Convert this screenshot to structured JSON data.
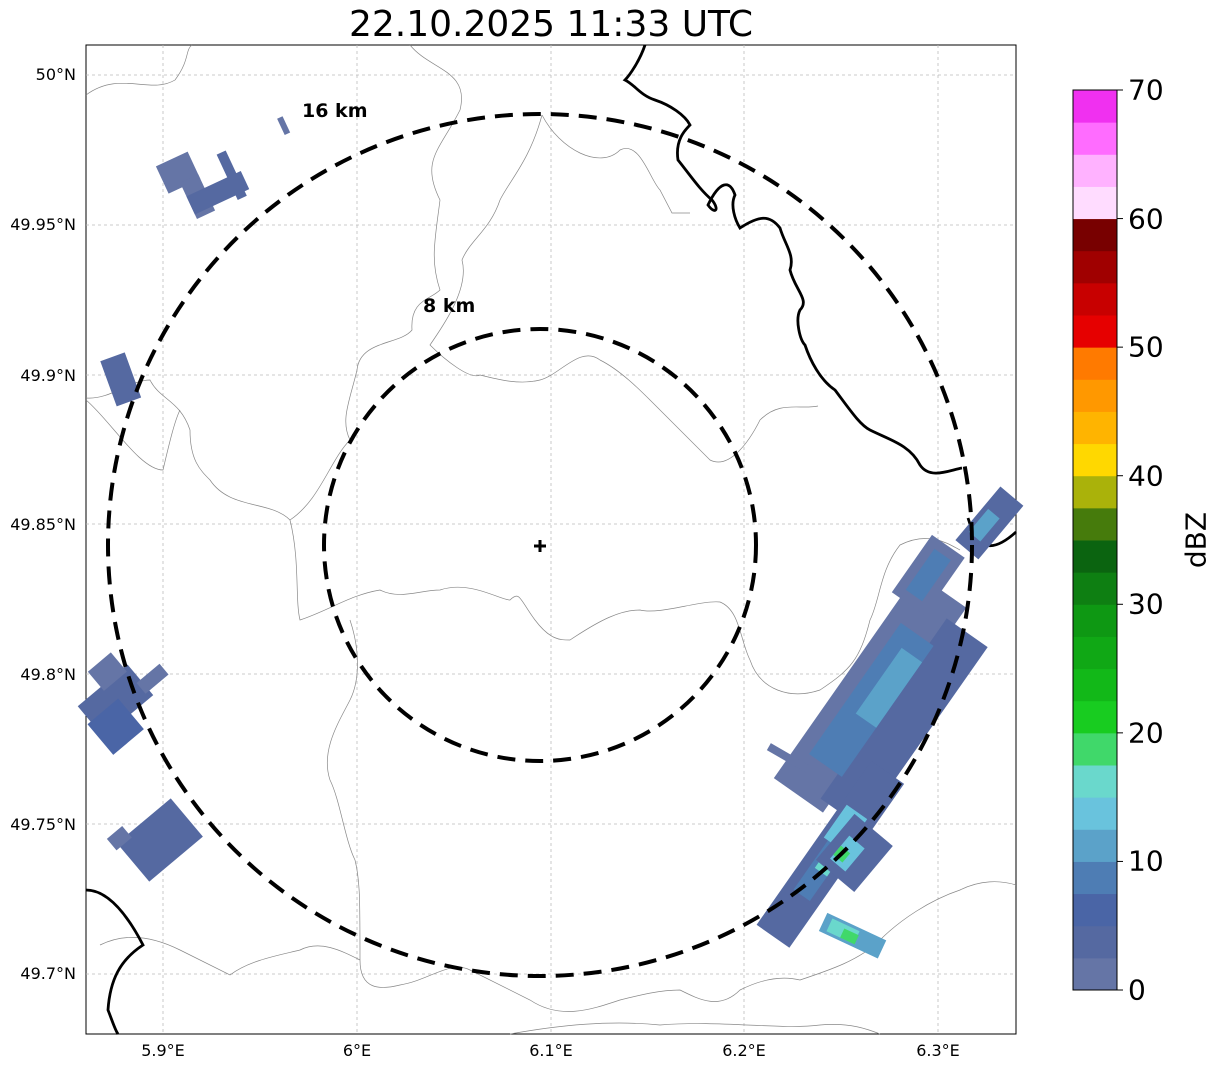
{
  "title": "22.10.2025 11:33 UTC",
  "rings": [
    {
      "label": "16 km"
    },
    {
      "label": "8 km"
    }
  ],
  "lat_ticks": [
    "50°N",
    "49.95°N",
    "49.9°N",
    "49.85°N",
    "49.8°N",
    "49.75°N",
    "49.7°N"
  ],
  "lon_ticks": [
    "5.9°E",
    "6°E",
    "6.1°E",
    "6.2°E",
    "6.3°E"
  ],
  "colorbar": {
    "unit": "dBZ",
    "ticks": [
      "0",
      "10",
      "20",
      "30",
      "40",
      "50",
      "60",
      "70"
    ],
    "colors": [
      "#6575a6",
      "#5569a1",
      "#4a65a6",
      "#4e7db4",
      "#5ba2c9",
      "#69c3dd",
      "#6ad8cc",
      "#40d86a",
      "#18cc20",
      "#12b818",
      "#10a815",
      "#0e9813",
      "#0e7f12",
      "#0b6410",
      "#467b0c",
      "#aab20a",
      "#ffd800",
      "#ffb400",
      "#ff9800",
      "#ff7a00",
      "#e60000",
      "#c80000",
      "#a00000",
      "#780000",
      "#ffdcff",
      "#ffb2ff",
      "#ff6cff",
      "#f030f0"
    ],
    "min": 0,
    "max": 70
  },
  "radar_site": {
    "lat": 49.843,
    "lon": 6.095
  },
  "extent": {
    "lon_min": 5.86,
    "lon_max": 6.34,
    "lat_min": 49.68,
    "lat_max": 50.01
  }
}
